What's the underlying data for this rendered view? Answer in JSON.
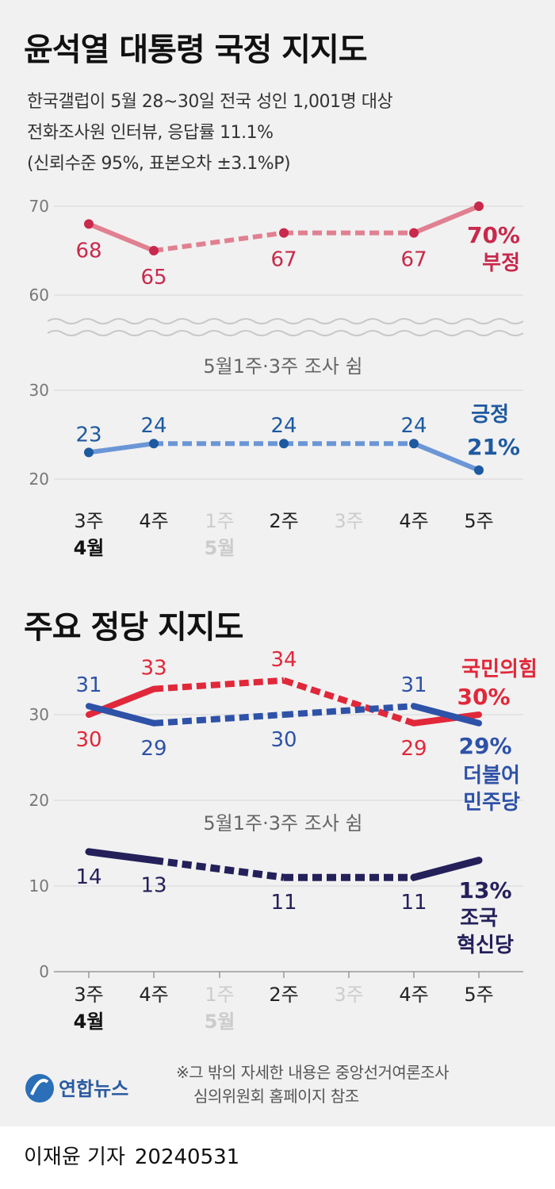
{
  "title1": "윤석열 대통령 국정 지지도",
  "subtitle": [
    "한국갤럽이 5월 28~30일 전국 성인 1,001명 대상",
    "전화조사원 인터뷰, 응답률 11.1%",
    "(신뢰수준 95%, 표본오차 ±3.1%P)"
  ],
  "title2": "주요 정당 지지도",
  "gap_note": "5월1주·3주 조사 쉼",
  "source_note": [
    "※그 밖의 자세한 내용은 중앙선거여론조사",
    "심의위원회 홈페이지 참조"
  ],
  "logo_text": "연합뉴스",
  "byline": {
    "reporter": "이재윤 기자",
    "date": "20240531"
  },
  "colors": {
    "negative": "#c8294c",
    "negative_light": "#e08090",
    "positive": "#1e5aa0",
    "positive_light": "#6b96d6",
    "ppp": "#e0283a",
    "dem": "#2e52a8",
    "rebuild": "#24205a",
    "muted": "#cccccc"
  },
  "chart_data": [
    {
      "type": "line",
      "title": "윤석열 대통령 국정 지지도",
      "x": [
        "3주",
        "4주",
        "1주",
        "2주",
        "3주",
        "4주",
        "5주"
      ],
      "x_month_labels": [
        {
          "under": "3주",
          "text": "4월"
        },
        {
          "under": "1주",
          "text": "5월"
        }
      ],
      "x_missing": [
        "1주",
        "3주"
      ],
      "y_ticks_upper": [
        60,
        70
      ],
      "y_ticks_lower": [
        20,
        30
      ],
      "axis_break": true,
      "series": [
        {
          "name": "부정",
          "values": [
            68,
            65,
            null,
            67,
            null,
            67,
            70
          ],
          "end_label": "70%",
          "color": "#c8294c"
        },
        {
          "name": "긍정",
          "values": [
            23,
            24,
            null,
            24,
            null,
            24,
            21
          ],
          "end_label": "21%",
          "color": "#1e5aa0"
        }
      ],
      "annotation": "5월1주·3주 조사 쉼"
    },
    {
      "type": "line",
      "title": "주요 정당 지지도",
      "x": [
        "3주",
        "4주",
        "1주",
        "2주",
        "3주",
        "4주",
        "5주"
      ],
      "x_month_labels": [
        {
          "under": "3주",
          "text": "4월"
        },
        {
          "under": "1주",
          "text": "5월"
        }
      ],
      "x_missing": [
        "1주",
        "3주"
      ],
      "y_ticks": [
        0,
        10,
        20,
        30
      ],
      "series": [
        {
          "name": "국민의힘",
          "values": [
            30,
            33,
            null,
            34,
            null,
            29,
            30
          ],
          "end_label": "30%",
          "color": "#e0283a"
        },
        {
          "name": "더불어민주당",
          "name_lines": [
            "더불어",
            "민주당"
          ],
          "values": [
            31,
            29,
            null,
            30,
            null,
            31,
            29
          ],
          "end_label": "29%",
          "color": "#2e52a8"
        },
        {
          "name": "조국혁신당",
          "name_lines": [
            "조국",
            "혁신당"
          ],
          "values": [
            14,
            13,
            null,
            11,
            null,
            11,
            13
          ],
          "end_label": "13%",
          "color": "#24205a"
        }
      ],
      "annotation": "5월1주·3주 조사 쉼"
    }
  ]
}
